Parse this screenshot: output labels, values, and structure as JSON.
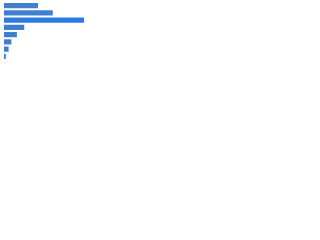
{
  "chart_data": {
    "type": "bar",
    "orientation": "horizontal",
    "categories": [
      null,
      null,
      null,
      null,
      null,
      null,
      null,
      null
    ],
    "values": [
      37,
      53,
      87,
      22,
      14,
      8,
      5,
      2
    ],
    "colors": [
      "#3f7fcf",
      "#3f7fcf",
      "#2a7be4",
      "#3f7fcf",
      "#3f7fcf",
      "#3f7fcf",
      "#3f7fcf",
      "#3f7fcf"
    ],
    "xlim": [
      0,
      100
    ]
  }
}
